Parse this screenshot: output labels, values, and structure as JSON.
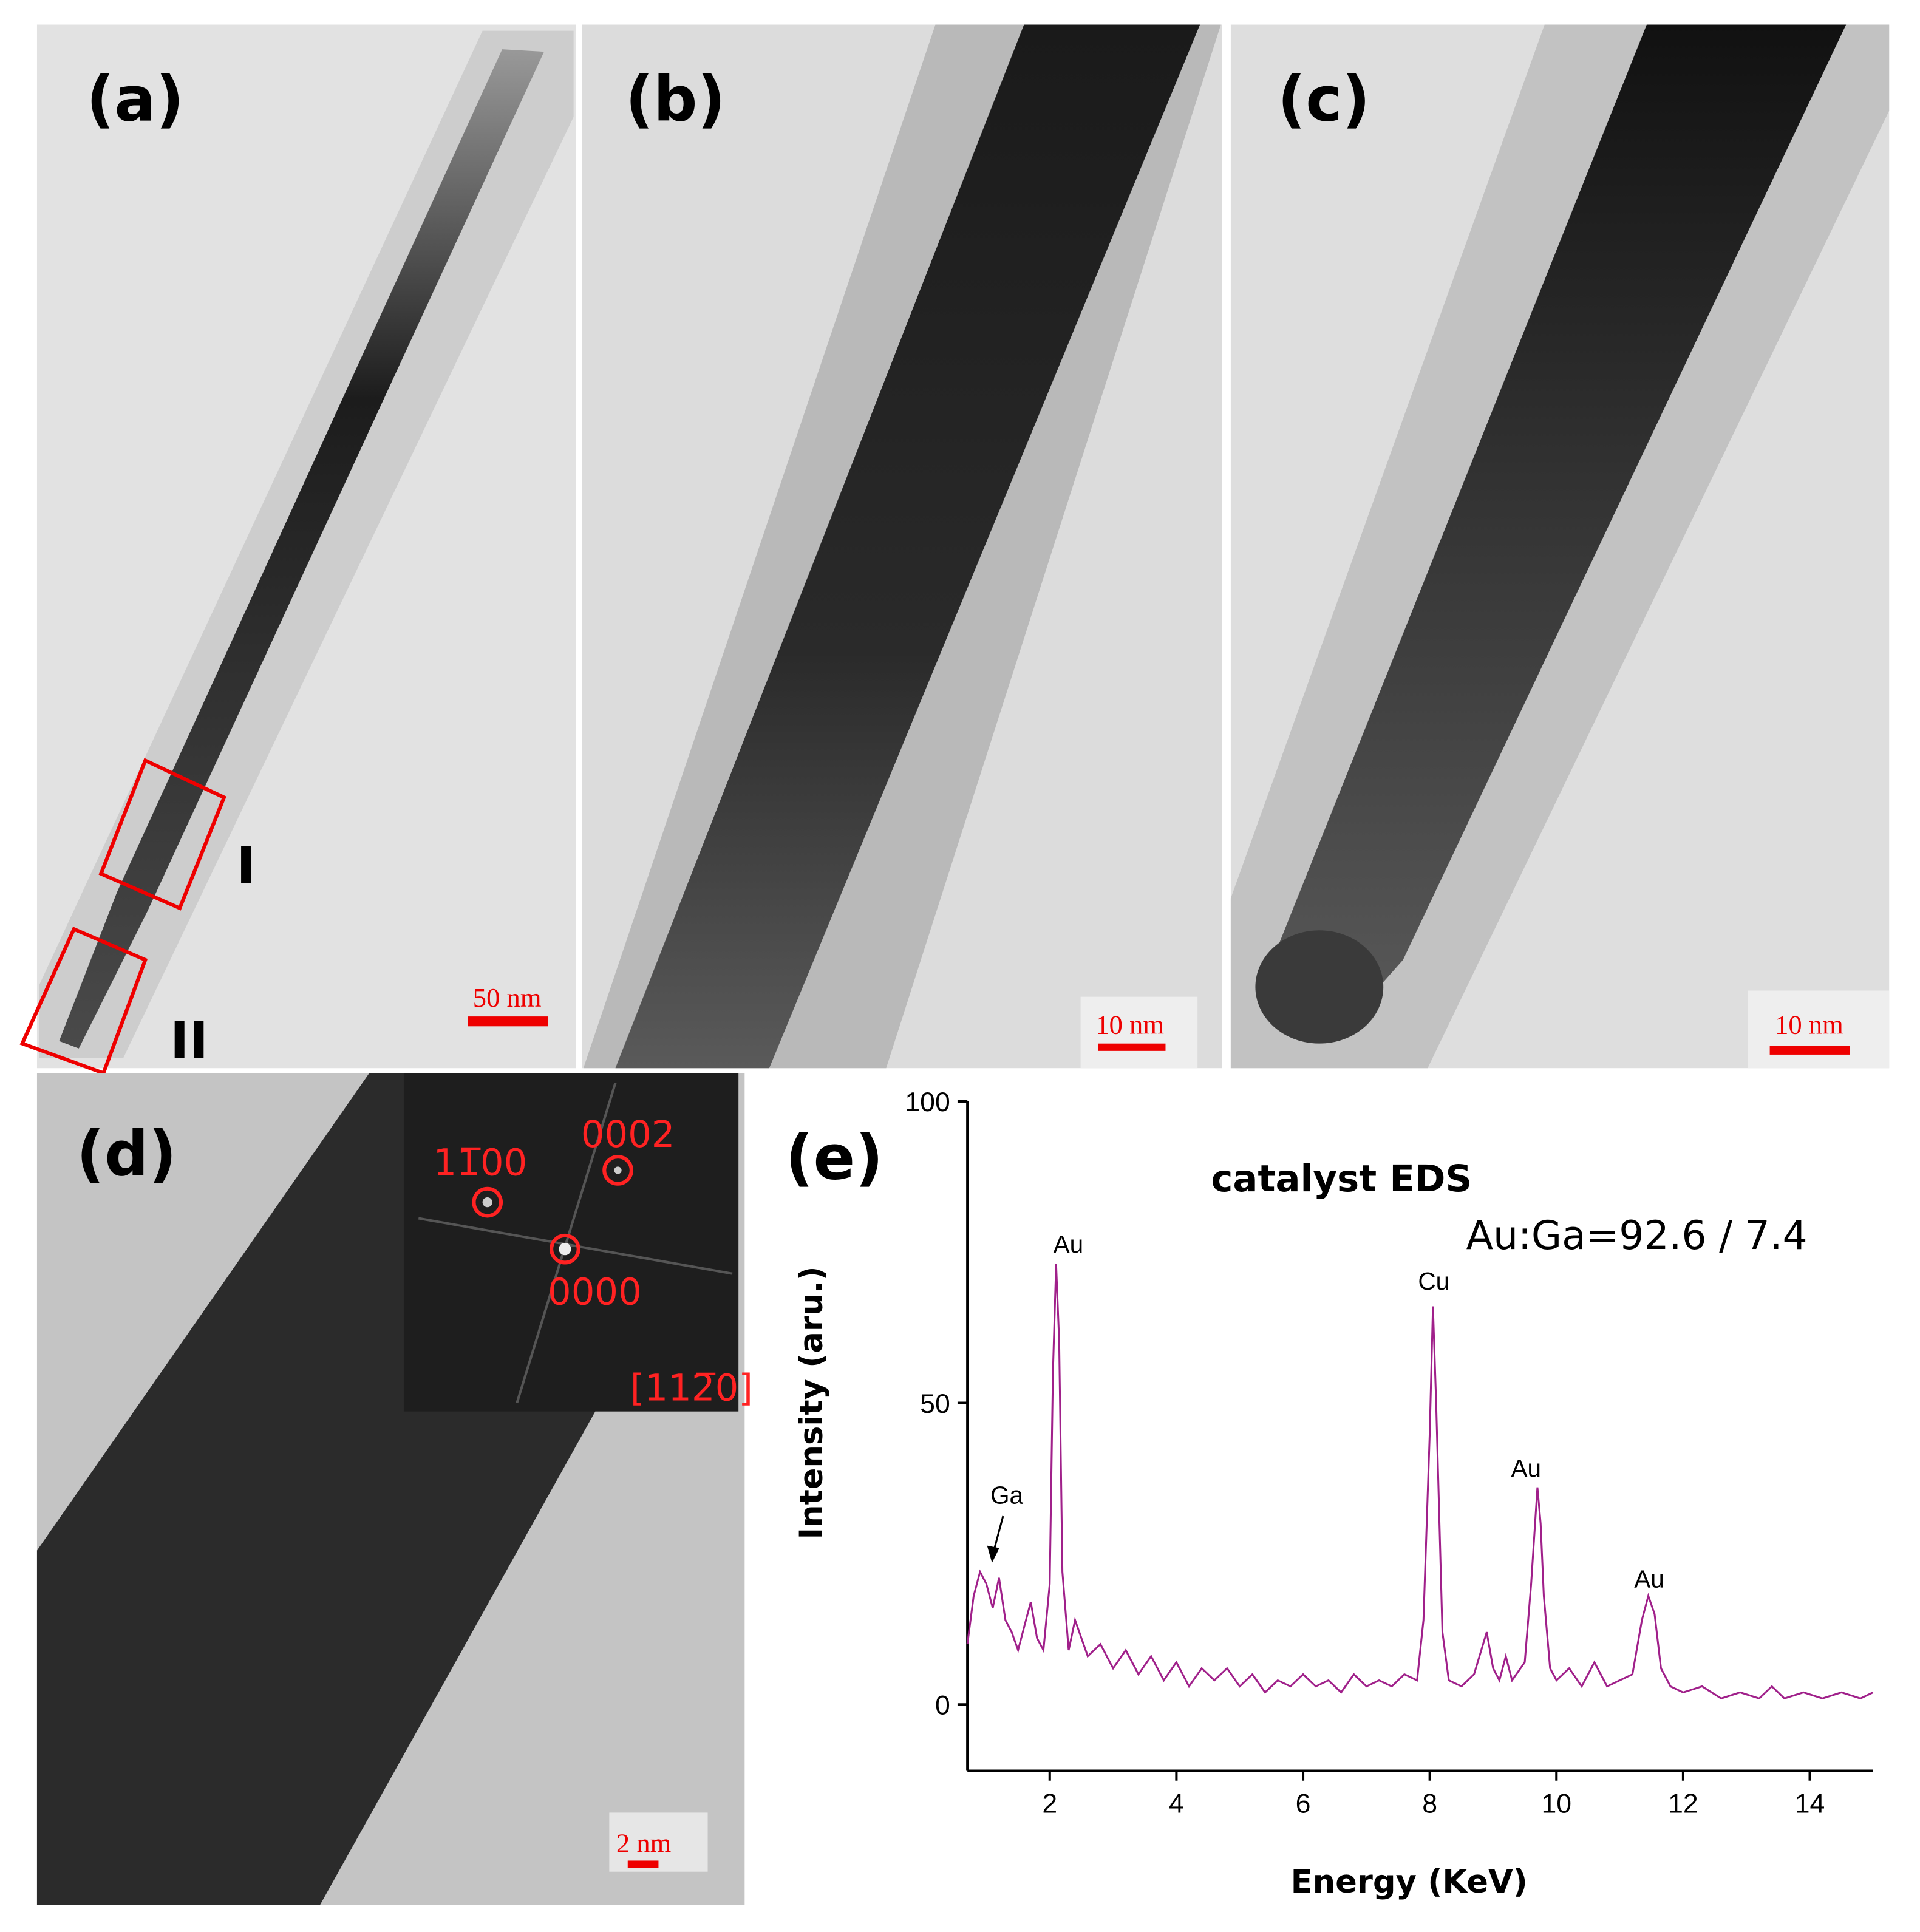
{
  "panels": [
    {
      "label": "(a)",
      "scale_bar": "50 nm",
      "regions": [
        "I",
        "II"
      ]
    },
    {
      "label": "(b)",
      "scale_bar": "10 nm"
    },
    {
      "label": "(c)",
      "scale_bar": "10 nm"
    },
    {
      "label": "(d)",
      "scale_bar": "2 nm",
      "fft": {
        "spots": [
          "11̅00",
          "0002",
          "0000"
        ],
        "zone_axis": "[112̅0]"
      }
    },
    {
      "label": "(e)"
    }
  ],
  "chart_data": {
    "type": "line",
    "title": "catalyst EDS",
    "subtitle": "Au:Ga=92.6 / 7.4",
    "x_label": "Energy (KeV)",
    "y_label": "Intensity (aru.)",
    "x": [
      0.7,
      0.8,
      0.9,
      1.0,
      1.1,
      1.2,
      1.3,
      1.4,
      1.5,
      1.6,
      1.7,
      1.8,
      1.9,
      2.0,
      2.05,
      2.1,
      2.15,
      2.2,
      2.3,
      2.4,
      2.6,
      2.8,
      3.0,
      3.2,
      3.4,
      3.6,
      3.8,
      4.0,
      4.2,
      4.4,
      4.6,
      4.8,
      5.0,
      5.2,
      5.4,
      5.6,
      5.8,
      6.0,
      6.2,
      6.4,
      6.6,
      6.8,
      7.0,
      7.2,
      7.4,
      7.6,
      7.8,
      7.9,
      8.0,
      8.05,
      8.1,
      8.2,
      8.3,
      8.5,
      8.7,
      8.9,
      9.0,
      9.1,
      9.2,
      9.3,
      9.5,
      9.6,
      9.7,
      9.75,
      9.8,
      9.9,
      10.0,
      10.2,
      10.4,
      10.6,
      10.8,
      11.0,
      11.2,
      11.35,
      11.45,
      11.55,
      11.65,
      11.8,
      12.0,
      12.3,
      12.6,
      12.9,
      13.2,
      13.4,
      13.6,
      13.9,
      14.2,
      14.5,
      14.8,
      15.0
    ],
    "series": [
      {
        "color": "#a0208a",
        "values": [
          10,
          18,
          22,
          20,
          16,
          21,
          14,
          12,
          9,
          13,
          17,
          11,
          9,
          20,
          55,
          73,
          60,
          22,
          9,
          14,
          8,
          10,
          6,
          9,
          5,
          8,
          4,
          7,
          3,
          6,
          4,
          6,
          3,
          5,
          2,
          4,
          3,
          5,
          3,
          4,
          2,
          5,
          3,
          4,
          3,
          5,
          4,
          14,
          45,
          66,
          50,
          12,
          4,
          3,
          5,
          12,
          6,
          4,
          8,
          4,
          7,
          20,
          36,
          30,
          18,
          6,
          4,
          6,
          3,
          7,
          3,
          4,
          5,
          14,
          18,
          15,
          6,
          3,
          2,
          3,
          1,
          2,
          1,
          3,
          1,
          2,
          1,
          2,
          1,
          2
        ]
      }
    ],
    "annotations": [
      "Ga",
      "Au",
      "Cu",
      "Au",
      "Au"
    ],
    "xlim": [
      0.7,
      15
    ],
    "ylim": [
      -11,
      100
    ],
    "xticks": [
      2,
      4,
      6,
      8,
      10,
      12,
      14
    ],
    "yticks": [
      0,
      50,
      100
    ]
  }
}
